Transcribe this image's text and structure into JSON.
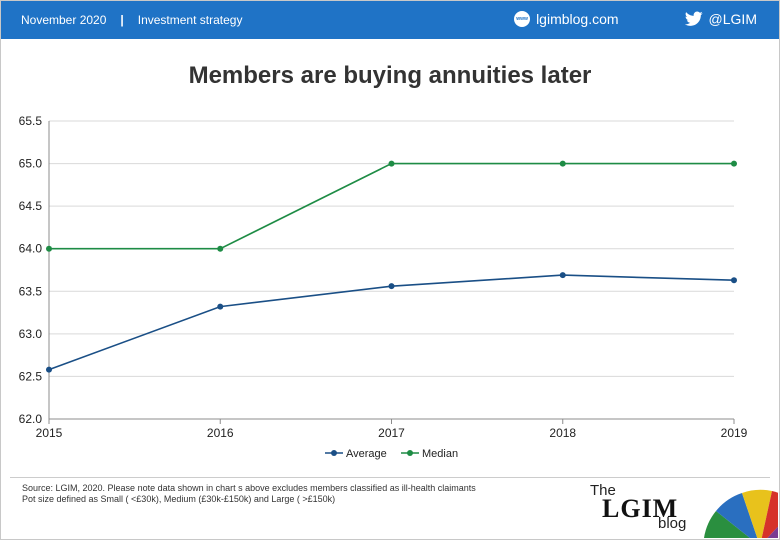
{
  "header": {
    "date": "November 2020",
    "separator": "|",
    "category": "Investment strategy",
    "site": "lgimblog.com",
    "site_icon_text": "www",
    "twitter": "@LGIM",
    "bg_color": "#1f73c6"
  },
  "chart_data": {
    "type": "line",
    "title": "Members are buying annuities later",
    "x": [
      "2015",
      "2016",
      "2017",
      "2018",
      "2019"
    ],
    "yticks": [
      "62.0",
      "62.5",
      "63.0",
      "63.5",
      "64.0",
      "64.5",
      "65.0",
      "65.5"
    ],
    "ylim": [
      62.0,
      65.5
    ],
    "grid": true,
    "legend_position": "bottom-center",
    "series": [
      {
        "name": "Average",
        "color": "#1a4f86",
        "values": [
          62.58,
          63.32,
          63.56,
          63.69,
          63.63
        ]
      },
      {
        "name": "Median",
        "color": "#1e8c45",
        "values": [
          64.0,
          64.0,
          65.0,
          65.0,
          65.0
        ]
      }
    ]
  },
  "footer": {
    "source_line1": "Source: LGIM, 2020. Please note data shown in chart s above excludes members classified as ill-health claimants",
    "source_line2": "Pot size defined as Small ( <£30k), Medium (£30k-£150k) and Large ( >£150k)"
  },
  "logo": {
    "the": "The",
    "main": "LGIM",
    "blog": "blog"
  }
}
